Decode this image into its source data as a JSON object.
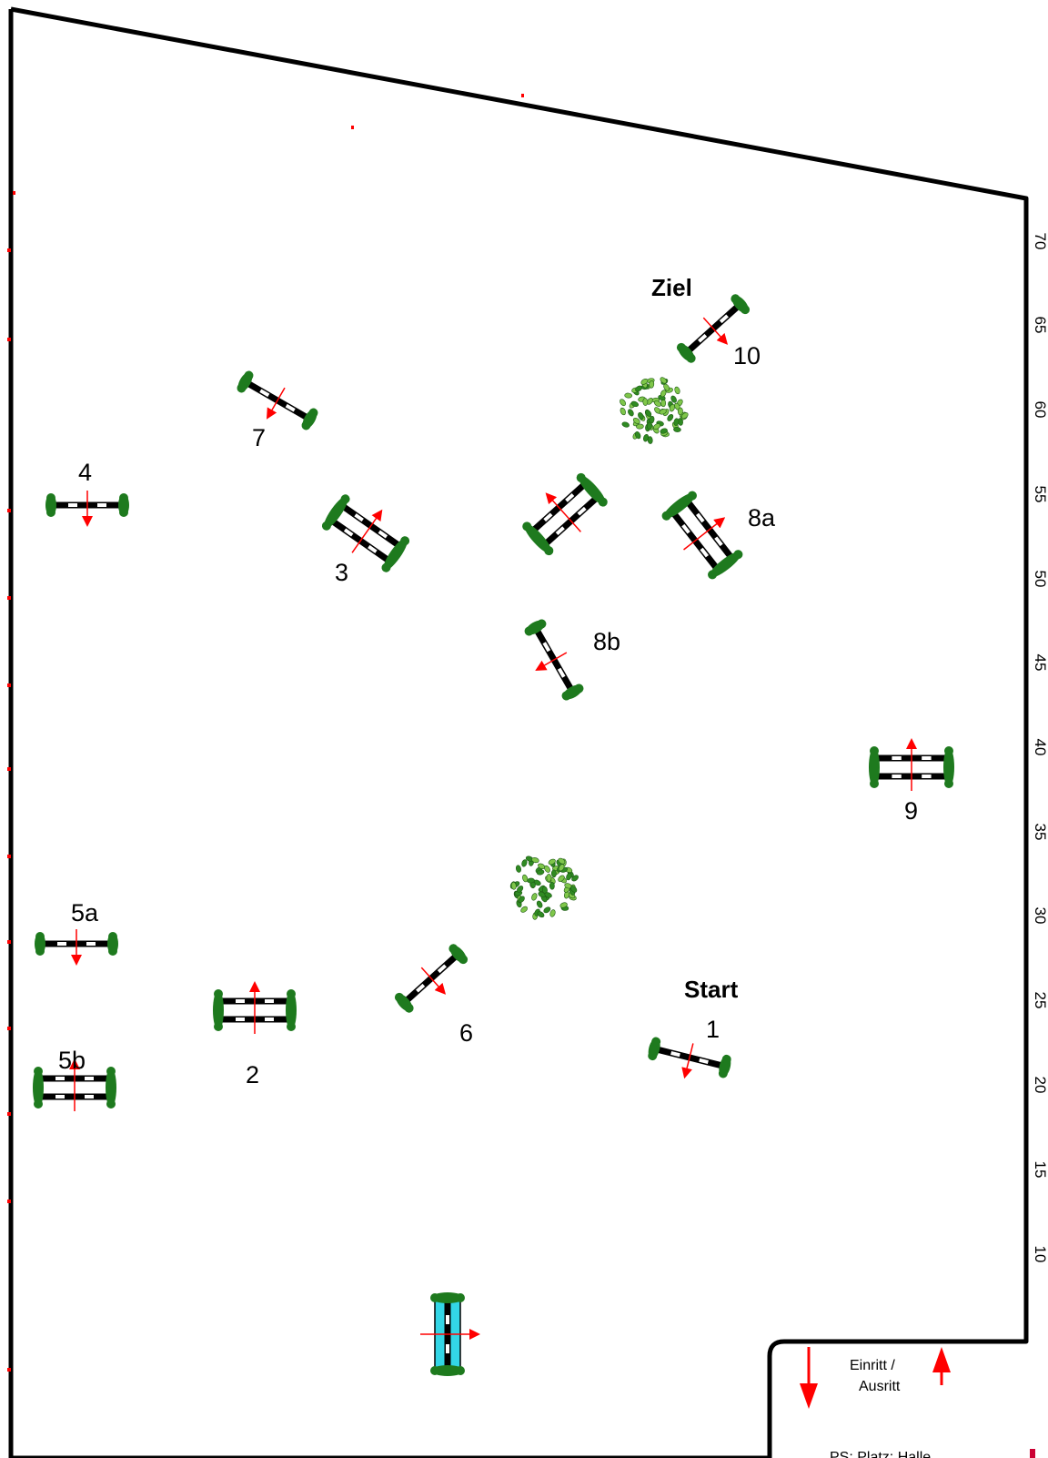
{
  "course": {
    "start_label": "Start",
    "finish_label": "Ziel",
    "entrance_label_line1": "Einritt /",
    "entrance_label_line2": "Ausritt",
    "footer_text": "PS: Platz: Halle",
    "colors": {
      "boundary": "#000000",
      "wing": "#1e7a1e",
      "arrow": "#ff0000",
      "water": "#33d6e6",
      "bush": "#3a9a2a"
    },
    "scale_ticks": [
      "10",
      "15",
      "20",
      "25",
      "30",
      "35",
      "40",
      "45",
      "50",
      "55",
      "60",
      "65",
      "70"
    ],
    "obstacles": [
      {
        "label": "1",
        "type": "vertical"
      },
      {
        "label": "2",
        "type": "oxer"
      },
      {
        "label": "3",
        "type": "oxer"
      },
      {
        "label": "4",
        "type": "vertical"
      },
      {
        "label": "5a",
        "type": "vertical"
      },
      {
        "label": "5b",
        "type": "oxer"
      },
      {
        "label": "6",
        "type": "vertical"
      },
      {
        "label": "7",
        "type": "vertical"
      },
      {
        "label": "8a",
        "type": "oxer"
      },
      {
        "label": "8b",
        "type": "vertical"
      },
      {
        "label": "9",
        "type": "oxer"
      },
      {
        "label": "10",
        "type": "vertical"
      },
      {
        "label": "",
        "type": "oxer"
      },
      {
        "label": "",
        "type": "water"
      }
    ]
  }
}
